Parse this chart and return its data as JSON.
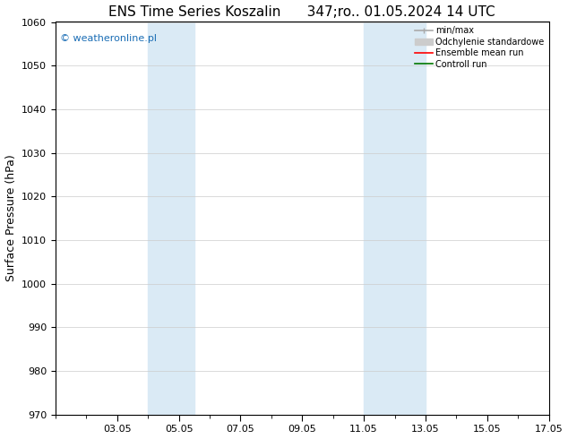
{
  "title": "ENS Time Series Koszalin      347;ro.. 01.05.2024 14 UTC",
  "ylabel": "Surface Pressure (hPa)",
  "ylim": [
    970,
    1060
  ],
  "yticks": [
    970,
    980,
    990,
    1000,
    1010,
    1020,
    1030,
    1040,
    1050,
    1060
  ],
  "x_min": 1,
  "x_max": 16,
  "xtick_labels": [
    "03.05",
    "05.05",
    "07.05",
    "09.05",
    "11.05",
    "13.05",
    "15.05",
    "17.05"
  ],
  "xtick_positions": [
    3,
    5,
    7,
    9,
    11,
    13,
    15,
    17
  ],
  "shade_regions": [
    {
      "x_start": 4.0,
      "x_end": 5.5
    },
    {
      "x_start": 11.0,
      "x_end": 13.0
    }
  ],
  "shade_color": "#daeaf5",
  "background_color": "#ffffff",
  "watermark_text": "© weatheronline.pl",
  "watermark_color": "#1a6db5",
  "legend_items": [
    {
      "label": "min/max",
      "color": "#aaaaaa",
      "lw": 1.2
    },
    {
      "label": "Odchylenie standardowe",
      "color": "#cccccc",
      "lw": 6
    },
    {
      "label": "Ensemble mean run",
      "color": "#ff0000",
      "lw": 1.2
    },
    {
      "label": "Controll run",
      "color": "#007700",
      "lw": 1.2
    }
  ],
  "title_fontsize": 11,
  "ylabel_fontsize": 9,
  "tick_fontsize": 8,
  "watermark_fontsize": 8,
  "legend_fontsize": 7,
  "grid_color": "#cccccc",
  "grid_linewidth": 0.5
}
